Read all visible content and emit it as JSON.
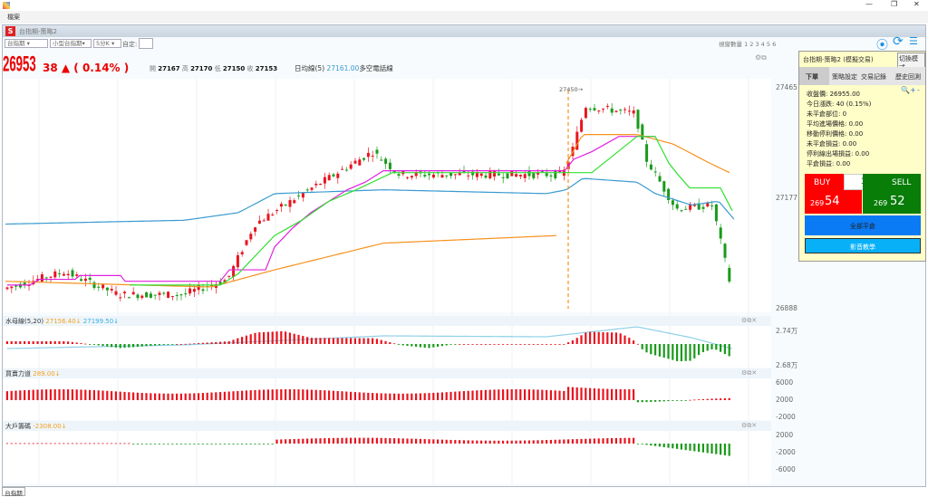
{
  "window": {
    "menu": "檔案",
    "inner_title": "台指期-策略2"
  },
  "toolbar": {
    "product": "台指期",
    "contract": "小型台指期",
    "period": "5分K",
    "custom_label": "自定:",
    "custom_value": "",
    "view_count": "視窗數量 1 2 3 4 5 6"
  },
  "quote": {
    "price": "26953",
    "change": "38 ▲ ( 0.14% )",
    "open_label": "開",
    "open": "27167",
    "high_label": "高",
    "high": "27170",
    "low_label": "低",
    "low": "27150",
    "close_label": "收",
    "close": "27153",
    "ma_label": "日均線(5)",
    "ma_value": "27161.00",
    "ma_suffix": "多空電話線"
  },
  "main_axis": [
    "27465",
    "27177",
    "26888"
  ],
  "marker": "27450→",
  "sub1": {
    "title": "水母線(5,20)",
    "v1": "27156.40↓",
    "v2": "27199.50↓",
    "axis": [
      "2.74万",
      "2.68万"
    ]
  },
  "sub2": {
    "title": "買賣力道",
    "v1": "289.00↓",
    "axis": [
      "6000",
      "2000",
      "-2000"
    ]
  },
  "sub3": {
    "title": "大戶籌碼",
    "v1": "-2308.00↓",
    "axis": [
      "2000",
      "-2000",
      "-6000"
    ]
  },
  "panel": {
    "title": "台指期-策略2 (模擬交易)",
    "switch": "切換模式",
    "tabs": [
      "下單",
      "策略設定",
      "交易記錄",
      "歷史回測"
    ],
    "info": [
      "收盤價: 26955.00",
      "今日漲跌: 40 (0.15%)",
      "未平倉部位: 0",
      "平均進場價格: 0.00",
      "移動停利價格: 0.00",
      "未平倉損益: 0.00",
      "停利線出場損益: 0.00",
      "平倉損益: 0.00"
    ],
    "buy": "BUY",
    "sell": "SELL",
    "qty": "1",
    "buy_prefix": "269",
    "buy_price": "54",
    "sell_prefix": "269",
    "sell_price": "52",
    "close_all": "全部平倉",
    "video": "影音教學"
  },
  "bottom_tab": "台指期",
  "colors": {
    "up": "#e8141e",
    "down": "#1a9a1a",
    "blue": "#3a9ad0",
    "orange": "#f5921e",
    "magenta": "#e020e0",
    "green": "#30e030"
  }
}
